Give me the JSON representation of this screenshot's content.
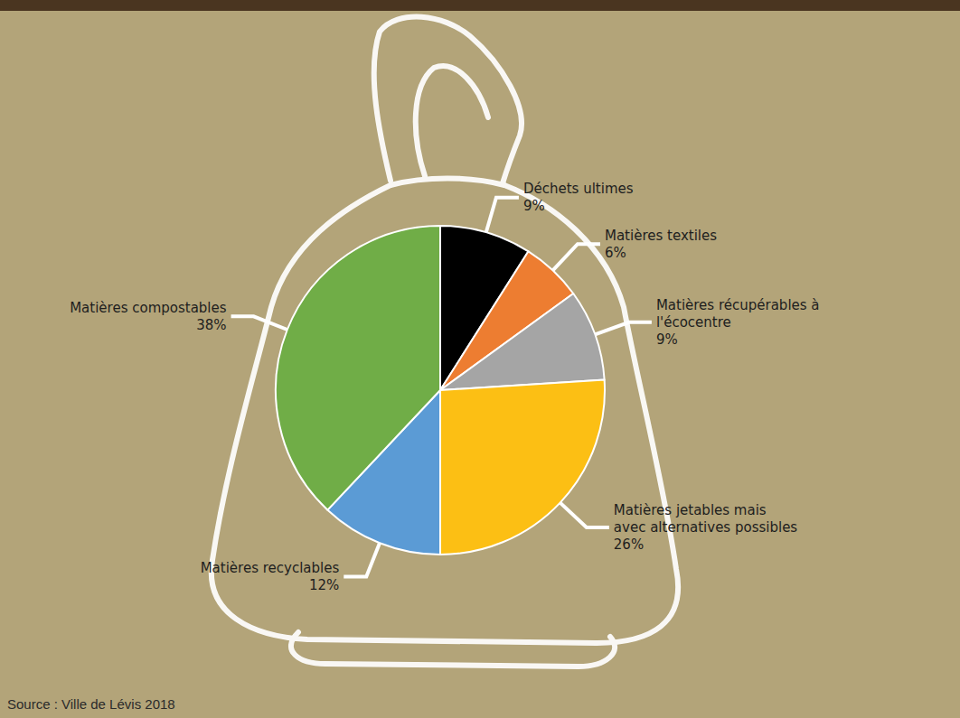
{
  "chart_data": {
    "type": "pie",
    "categories": [
      "Déchets ultimes",
      "Matières textiles",
      "Matières récupérables à l'écocentre",
      "Matières jetables mais avec alternatives possibles",
      "Matières recyclables",
      "Matières compostables"
    ],
    "values": [
      9,
      6,
      9,
      26,
      12,
      38
    ],
    "value_labels": [
      "9%",
      "6%",
      "9%",
      "26%",
      "12%",
      "38%"
    ],
    "colors": [
      "#000000",
      "#ed7d31",
      "#a5a5a5",
      "#fcbf14",
      "#5b9bd5",
      "#70ad47"
    ],
    "data_labels": true,
    "source": "Source : Ville de Lévis 2018"
  }
}
